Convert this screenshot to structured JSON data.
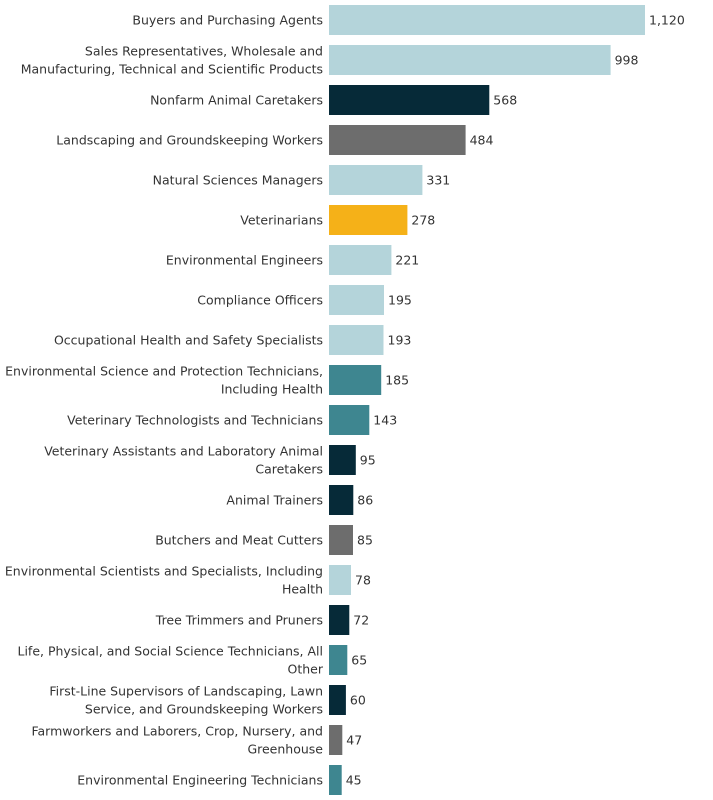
{
  "chart_data": {
    "type": "bar",
    "orientation": "horizontal",
    "title": "",
    "xlabel": "",
    "ylabel": "",
    "xlim": [
      0,
      1120
    ],
    "grid": false,
    "legend": "none",
    "categories": [
      [
        "Buyers and Purchasing Agents"
      ],
      [
        "Sales Representatives, Wholesale and",
        "Manufacturing, Technical and Scientific Products"
      ],
      [
        "Nonfarm Animal Caretakers"
      ],
      [
        "Landscaping and Groundskeeping Workers"
      ],
      [
        "Natural Sciences Managers"
      ],
      [
        "Veterinarians"
      ],
      [
        "Environmental Engineers"
      ],
      [
        "Compliance Officers"
      ],
      [
        "Occupational Health and Safety Specialists"
      ],
      [
        "Environmental Science and Protection Technicians,",
        "Including Health"
      ],
      [
        "Veterinary Technologists and Technicians"
      ],
      [
        "Veterinary Assistants and Laboratory Animal",
        "Caretakers"
      ],
      [
        "Animal Trainers"
      ],
      [
        "Butchers and Meat Cutters"
      ],
      [
        "Environmental Scientists and Specialists, Including",
        "Health"
      ],
      [
        "Tree Trimmers and Pruners"
      ],
      [
        "Life, Physical, and Social Science Technicians, All",
        "Other"
      ],
      [
        "First-Line Supervisors of Landscaping, Lawn",
        "Service, and Groundskeeping Workers"
      ],
      [
        "Farmworkers and Laborers, Crop, Nursery, and",
        "Greenhouse"
      ],
      [
        "Environmental Engineering Technicians"
      ]
    ],
    "values": [
      1120,
      998,
      568,
      484,
      331,
      278,
      221,
      195,
      193,
      185,
      143,
      95,
      86,
      85,
      78,
      72,
      65,
      60,
      47,
      45
    ],
    "value_labels": [
      "1,120",
      "998",
      "568",
      "484",
      "331",
      "278",
      "221",
      "195",
      "193",
      "185",
      "143",
      "95",
      "86",
      "85",
      "78",
      "72",
      "65",
      "60",
      "47",
      "45"
    ],
    "bar_colors": [
      "#b4d4da",
      "#b4d4da",
      "#062a38",
      "#6d6d6d",
      "#b4d4da",
      "#f5b118",
      "#b4d4da",
      "#b4d4da",
      "#b4d4da",
      "#3e8690",
      "#3e8690",
      "#062a38",
      "#062a38",
      "#6d6d6d",
      "#b4d4da",
      "#062a38",
      "#3e8690",
      "#062a38",
      "#6d6d6d",
      "#3e8690"
    ]
  }
}
